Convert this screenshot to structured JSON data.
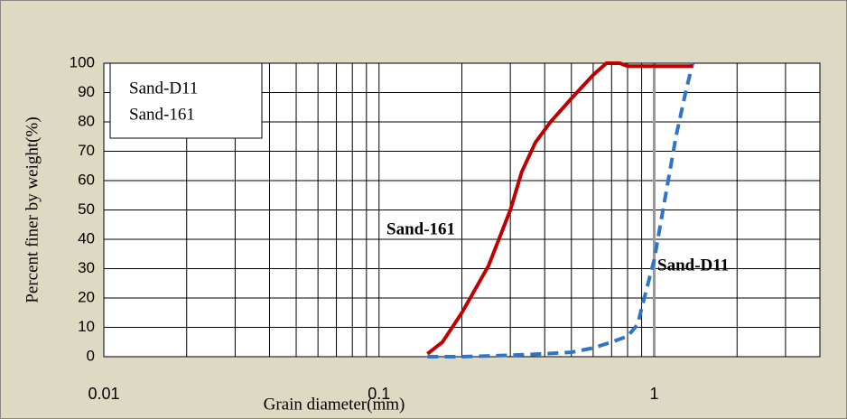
{
  "chart_data": {
    "type": "line",
    "xlabel": "Grain diameter(mm)",
    "ylabel": "Percent finer by weight(%)",
    "xscale": "log",
    "xlim": [
      0.01,
      4
    ],
    "ylim": [
      0,
      100
    ],
    "xticks": [
      0.01,
      0.1,
      1
    ],
    "xgrid_lines": [
      0.02,
      0.03,
      0.04,
      0.05,
      0.06,
      0.07,
      0.08,
      0.09,
      0.2,
      0.3,
      0.4,
      0.5,
      0.6,
      0.7,
      0.8,
      0.9,
      2,
      3,
      4
    ],
    "yticks": [
      0,
      10,
      20,
      30,
      40,
      50,
      60,
      70,
      80,
      90,
      100
    ],
    "grid": true,
    "legend": "upper left",
    "series": [
      {
        "name": "Sand-D11",
        "color": "#2e75c7",
        "dashed": true,
        "x": [
          0.15,
          0.2,
          0.3,
          0.4,
          0.5,
          0.6,
          0.7,
          0.8,
          0.87,
          0.92,
          1,
          1.1,
          1.2,
          1.3,
          1.38
        ],
        "values": [
          0,
          0,
          0.5,
          1,
          1.5,
          3,
          5,
          7,
          11,
          20,
          33,
          55,
          75,
          90,
          100
        ]
      },
      {
        "name": "Sand-161",
        "color": "#c00000",
        "dashed": false,
        "x": [
          0.15,
          0.17,
          0.2,
          0.25,
          0.3,
          0.33,
          0.37,
          0.42,
          0.5,
          0.6,
          0.67,
          0.75,
          0.8,
          1,
          1.2,
          1.38
        ],
        "values": [
          1,
          5,
          15,
          31,
          50,
          63,
          73,
          80,
          88,
          96,
          100,
          100,
          99,
          99,
          99,
          99
        ]
      }
    ],
    "annotations": [
      "Sand-161",
      "Sand-D11"
    ]
  }
}
